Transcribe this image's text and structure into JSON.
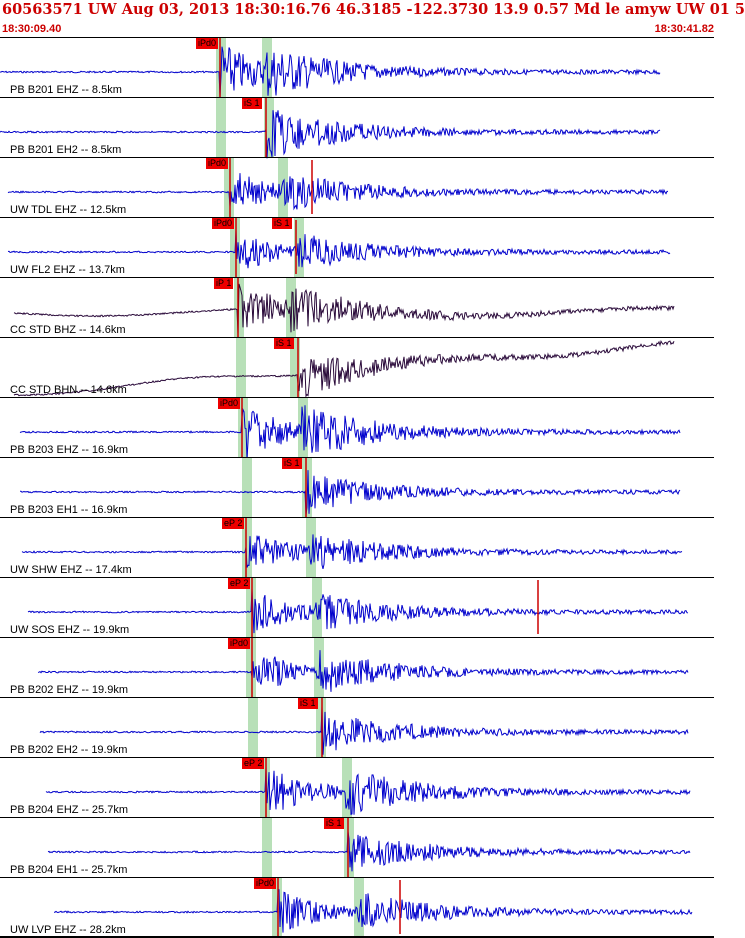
{
  "header": {
    "title": "60563571 UW Aug 03, 2013 18:30:16.76   46.3185 -122.3730 13.9 0.57 Md le amyw UW 01   5",
    "start_time": "18:30:09.40",
    "end_time": "18:30:41.82"
  },
  "colors": {
    "header_text": "#cc0000",
    "trace_blue": "#0000cc",
    "trace_dark": "#2a0a3a",
    "pick_box": "#ee0000",
    "pick_line": "#cc0000",
    "window_green": "#b8e0b8"
  },
  "traces": [
    {
      "label": "PB B201 EHZ -- 8.5km",
      "pick": "iPd0",
      "color": "blue"
    },
    {
      "label": "PB B201 EH2 -- 8.5km",
      "pick": "iS 1",
      "color": "blue"
    },
    {
      "label": "UW TDL EHZ -- 12.5km",
      "pick": "iPd0",
      "color": "blue"
    },
    {
      "label": "UW FL2 EHZ -- 13.7km",
      "pick": "iPd0",
      "pick2": "iS 1",
      "color": "blue"
    },
    {
      "label": "CC STD BHZ -- 14.6km",
      "pick": "iP 1",
      "color": "dark"
    },
    {
      "label": "CC STD BHN -- 14.6km",
      "pick": "iS 1",
      "color": "dark"
    },
    {
      "label": "PB B203 EHZ -- 16.9km",
      "pick": "iPd0",
      "color": "blue"
    },
    {
      "label": "PB B203 EH1 -- 16.9km",
      "pick": "iS 1",
      "color": "blue"
    },
    {
      "label": "UW SHW EHZ -- 17.4km",
      "pick": "eP 2",
      "color": "blue"
    },
    {
      "label": "UW SOS EHZ -- 19.9km",
      "pick": "eP 2",
      "color": "blue"
    },
    {
      "label": "PB B202 EHZ -- 19.9km",
      "pick": "iPd0",
      "color": "blue"
    },
    {
      "label": "PB B202 EH2 -- 19.9km",
      "pick": "iS 1",
      "color": "blue"
    },
    {
      "label": "PB B204 EHZ -- 25.7km",
      "pick": "eP 2",
      "color": "blue"
    },
    {
      "label": "PB B204 EH1 -- 25.7km",
      "pick": "iS 1",
      "color": "blue"
    },
    {
      "label": "UW LVP EHZ -- 28.2km",
      "pick": "iPd0",
      "color": "blue"
    }
  ]
}
